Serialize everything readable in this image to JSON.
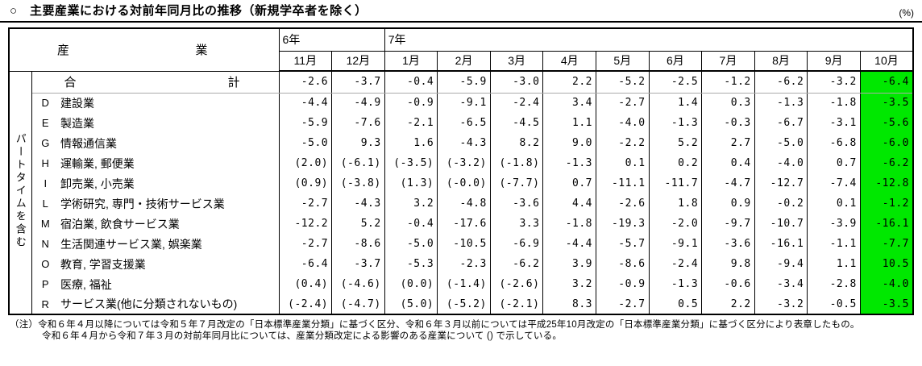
{
  "title": "○　主要産業における対前年同月比の推移（新規学卒者を除く）",
  "unit_label": "(%)",
  "table": {
    "industry_header_left": "産",
    "industry_header_right": "業",
    "year_groups": [
      {
        "label": "6年",
        "span": 2
      },
      {
        "label": "7年",
        "span": 10
      }
    ],
    "months": [
      "11月",
      "12月",
      "1月",
      "2月",
      "3月",
      "4月",
      "5月",
      "6月",
      "7月",
      "8月",
      "9月",
      "10月"
    ],
    "side_label": "パートタイムを含む",
    "highlight_color": "#00e800",
    "highlight_column": "10月",
    "total_row": {
      "label_left": "合",
      "label_right": "計",
      "values": [
        "-2.6",
        "-3.7",
        "-0.4",
        "-5.9",
        "-3.0",
        "2.2",
        "-5.2",
        "-2.5",
        "-1.2",
        "-6.2",
        "-3.2",
        "-6.4"
      ]
    },
    "rows": [
      {
        "code": "D",
        "name": "建設業",
        "values": [
          "-4.4",
          "-4.9",
          "-0.9",
          "-9.1",
          "-2.4",
          "3.4",
          "-2.7",
          "1.4",
          "0.3",
          "-1.3",
          "-1.8",
          "-3.5"
        ]
      },
      {
        "code": "E",
        "name": "製造業",
        "values": [
          "-5.9",
          "-7.6",
          "-2.1",
          "-6.5",
          "-4.5",
          "1.1",
          "-4.0",
          "-1.3",
          "-0.3",
          "-6.7",
          "-3.1",
          "-5.6"
        ]
      },
      {
        "code": "G",
        "name": "情報通信業",
        "values": [
          "-5.0",
          "9.3",
          "1.6",
          "-4.3",
          "8.2",
          "9.0",
          "-2.2",
          "5.2",
          "2.7",
          "-5.0",
          "-6.8",
          "-6.0"
        ]
      },
      {
        "code": "H",
        "name": "運輸業, 郵便業",
        "values": [
          "(2.0)",
          "(-6.1)",
          "(-3.5)",
          "(-3.2)",
          "(-1.8)",
          "-1.3",
          "0.1",
          "0.2",
          "0.4",
          "-4.0",
          "0.7",
          "-6.2"
        ]
      },
      {
        "code": "I",
        "name": "卸売業, 小売業",
        "values": [
          "(0.9)",
          "(-3.8)",
          "(1.3)",
          "(-0.0)",
          "(-7.7)",
          "0.7",
          "-11.1",
          "-11.7",
          "-4.7",
          "-12.7",
          "-7.4",
          "-12.8"
        ]
      },
      {
        "code": "L",
        "name": "学術研究, 専門・技術サービス業",
        "values": [
          "-2.7",
          "-4.3",
          "3.2",
          "-4.8",
          "-3.6",
          "4.4",
          "-2.6",
          "1.8",
          "0.9",
          "-0.2",
          "0.1",
          "-1.2"
        ]
      },
      {
        "code": "M",
        "name": "宿泊業, 飲食サービス業",
        "values": [
          "-12.2",
          "5.2",
          "-0.4",
          "-17.6",
          "3.3",
          "-1.8",
          "-19.3",
          "-2.0",
          "-9.7",
          "-10.7",
          "-3.9",
          "-16.1"
        ]
      },
      {
        "code": "N",
        "name": "生活関連サービス業, 娯楽業",
        "values": [
          "-2.7",
          "-8.6",
          "-5.0",
          "-10.5",
          "-6.9",
          "-4.4",
          "-5.7",
          "-9.1",
          "-3.6",
          "-16.1",
          "-1.1",
          "-7.7"
        ]
      },
      {
        "code": "O",
        "name": "教育, 学習支援業",
        "values": [
          "-6.4",
          "-3.7",
          "-5.3",
          "-2.3",
          "-6.2",
          "3.9",
          "-8.6",
          "-2.4",
          "9.8",
          "-9.4",
          "1.1",
          "10.5"
        ]
      },
      {
        "code": "P",
        "name": "医療, 福祉",
        "values": [
          "(0.4)",
          "(-4.6)",
          "(0.0)",
          "(-1.4)",
          "(-2.6)",
          "3.2",
          "-0.9",
          "-1.3",
          "-0.6",
          "-3.4",
          "-2.8",
          "-4.0"
        ]
      },
      {
        "code": "R",
        "name": "サービス業(他に分類されないもの)",
        "values": [
          "(-2.4)",
          "(-4.7)",
          "(5.0)",
          "(-5.2)",
          "(-2.1)",
          "8.3",
          "-2.7",
          "0.5",
          "2.2",
          "-3.2",
          "-0.5",
          "-3.5"
        ]
      }
    ]
  },
  "footnote": {
    "line1": "（注）令和６年４月以降については令和５年７月改定の「日本標準産業分類」に基づく区分、令和６年３月以前については平成25年10月改定の「日本標準産業分類」に基づく区分により表章したもの。",
    "line2": "令和６年４月から令和７年３月の対前年同月比については、産業分類改定による影響のある産業について () で示している。"
  }
}
